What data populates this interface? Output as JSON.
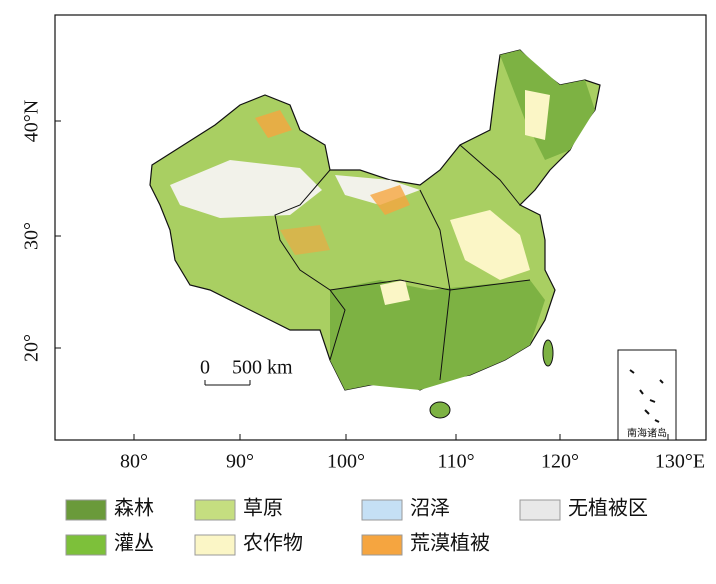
{
  "map": {
    "x_ticks": [
      "80°",
      "90°",
      "100°",
      "110°",
      "120°",
      "130°E"
    ],
    "y_ticks": [
      "40°N",
      "30°",
      "20°"
    ],
    "scale_bar": {
      "zero": "0",
      "distance": "500 km"
    },
    "inset_label": "南海诸岛",
    "legend": [
      {
        "name": "森林",
        "color": "#6a9a3a"
      },
      {
        "name": "灌丛",
        "color": "#7dc03a"
      },
      {
        "name": "草原",
        "color": "#c5de80"
      },
      {
        "name": "农作物",
        "color": "#fbf6c6"
      },
      {
        "name": "沼泽",
        "color": "#c5e0f5"
      },
      {
        "name": "荒漠植被",
        "color": "#f5a540"
      },
      {
        "name": "无植被区",
        "color": "#e8e8e8"
      }
    ]
  }
}
